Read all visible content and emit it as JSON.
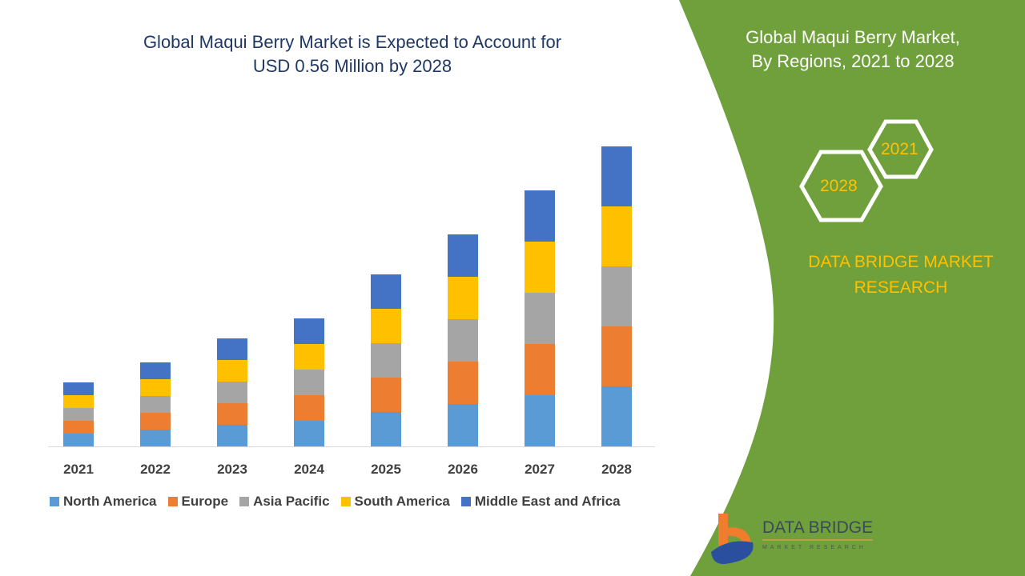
{
  "header": {
    "title_line1": "Global Maqui Berry Market is Expected to Account for",
    "title_line2": "USD 0.56 Million by 2028"
  },
  "side_panel": {
    "title_line1": "Global Maqui Berry Market,",
    "title_line2": "By Regions, 2021 to 2028",
    "hex_start": "2021",
    "hex_end": "2028",
    "brand_line1": "DATA BRIDGE MARKET",
    "brand_line2": "RESEARCH",
    "logo_text": "DATA BRIDGE",
    "logo_subtext": "MARKET RESEARCH",
    "panel_color": "#70a03c"
  },
  "chart_data": {
    "type": "bar",
    "stacked": true,
    "title": "",
    "xlabel": "",
    "ylabel": "",
    "categories": [
      "2021",
      "2022",
      "2023",
      "2024",
      "2025",
      "2026",
      "2027",
      "2028"
    ],
    "series": [
      {
        "name": "North America",
        "color": "#5b9bd5",
        "values": [
          16,
          21,
          27,
          32,
          43,
          53,
          64,
          75
        ]
      },
      {
        "name": "Europe",
        "color": "#ed7d31",
        "values": [
          16,
          21,
          27,
          32,
          43,
          53,
          64,
          75
        ]
      },
      {
        "name": "Asia Pacific",
        "color": "#a5a5a5",
        "values": [
          16,
          21,
          27,
          32,
          43,
          53,
          64,
          75
        ]
      },
      {
        "name": "South America",
        "color": "#ffc000",
        "values": [
          16,
          21,
          27,
          32,
          43,
          53,
          64,
          75
        ]
      },
      {
        "name": "Middle East and Africa",
        "color": "#4472c4",
        "values": [
          16,
          21,
          27,
          32,
          43,
          53,
          64,
          75
        ]
      }
    ],
    "grid": false,
    "legend": "bottom"
  }
}
